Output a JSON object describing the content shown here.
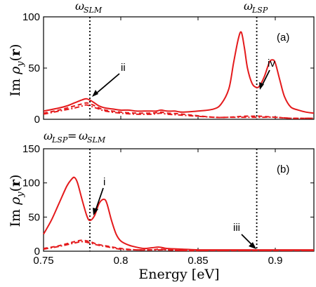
{
  "chart_data": [
    {
      "type": "line",
      "panel_label": "(a)",
      "ylabel": "Im ρ_y(r)",
      "xlim": [
        0.75,
        0.925
      ],
      "ylim": [
        0,
        100
      ],
      "yticks": [
        "0",
        "50",
        "100"
      ],
      "top_labels": [
        "ω_SLM",
        "ω_LSP"
      ],
      "vlines": [
        0.78,
        0.888
      ],
      "series": [
        {
          "style": "solid",
          "x": [
            0.75,
            0.76,
            0.765,
            0.77,
            0.775,
            0.778,
            0.782,
            0.786,
            0.79,
            0.795,
            0.8,
            0.805,
            0.81,
            0.815,
            0.82,
            0.823,
            0.826,
            0.83,
            0.835,
            0.84,
            0.85,
            0.86,
            0.865,
            0.87,
            0.873,
            0.876,
            0.878,
            0.88,
            0.882,
            0.885,
            0.888,
            0.89,
            0.893,
            0.896,
            0.898,
            0.9,
            0.903,
            0.906,
            0.91,
            0.915,
            0.92,
            0.925
          ],
          "values": [
            8,
            11,
            13,
            16,
            19,
            20,
            17,
            13,
            11,
            10,
            9,
            9,
            8,
            8,
            8,
            8,
            9,
            8,
            8,
            7,
            8,
            10,
            15,
            30,
            55,
            78,
            85,
            70,
            50,
            35,
            31,
            33,
            42,
            55,
            58,
            55,
            38,
            22,
            12,
            9,
            7,
            6
          ]
        },
        {
          "style": "dashed",
          "x": [
            0.75,
            0.76,
            0.77,
            0.775,
            0.778,
            0.782,
            0.786,
            0.79,
            0.8,
            0.81,
            0.82,
            0.826,
            0.83,
            0.84,
            0.86,
            0.87,
            0.88,
            0.885,
            0.89,
            0.9,
            0.91,
            0.925
          ],
          "values": [
            6,
            9,
            13,
            15,
            16,
            14,
            11,
            9,
            7,
            6,
            6,
            7,
            6,
            5,
            2,
            2,
            3,
            3,
            3,
            2,
            1,
            1
          ]
        },
        {
          "style": "dashdot",
          "x": [
            0.75,
            0.76,
            0.77,
            0.775,
            0.778,
            0.782,
            0.786,
            0.79,
            0.8,
            0.81,
            0.82,
            0.826,
            0.83,
            0.84,
            0.86,
            0.87,
            0.88,
            0.885,
            0.89,
            0.9,
            0.91,
            0.925
          ],
          "values": [
            5,
            8,
            11,
            13,
            14,
            12,
            10,
            8,
            6,
            5,
            5,
            6,
            5,
            4,
            2,
            2,
            2,
            2,
            2,
            2,
            1,
            1
          ]
        }
      ],
      "annotations": [
        {
          "text": "ii",
          "x": 0.78,
          "y": 20
        },
        {
          "text": "iv",
          "x": 0.888,
          "y": 31
        }
      ]
    },
    {
      "type": "line",
      "panel_label": "(b)",
      "ylabel": "Im ρ_y(r)",
      "xlabel": "Energy [eV]",
      "xlim": [
        0.75,
        0.925
      ],
      "ylim": [
        0,
        150
      ],
      "xticks": [
        "0.75",
        "0.8",
        "0.85",
        "0.9"
      ],
      "yticks": [
        "0",
        "50",
        "100",
        "150"
      ],
      "top_labels": [
        "ω_LSP = ω_SLM"
      ],
      "vlines": [
        0.78,
        0.888
      ],
      "series": [
        {
          "style": "solid",
          "x": [
            0.75,
            0.755,
            0.76,
            0.765,
            0.768,
            0.77,
            0.772,
            0.775,
            0.778,
            0.78,
            0.783,
            0.786,
            0.789,
            0.791,
            0.794,
            0.797,
            0.8,
            0.805,
            0.81,
            0.815,
            0.82,
            0.825,
            0.83,
            0.84,
            0.85,
            0.86,
            0.87,
            0.88,
            0.89,
            0.9,
            0.91,
            0.925
          ],
          "values": [
            25,
            45,
            70,
            95,
            105,
            108,
            100,
            75,
            52,
            45,
            52,
            70,
            76,
            70,
            45,
            25,
            15,
            9,
            6,
            4,
            5,
            6,
            4,
            3,
            2,
            2,
            2,
            2,
            2,
            2,
            2,
            2
          ]
        },
        {
          "style": "dashed",
          "x": [
            0.75,
            0.76,
            0.77,
            0.775,
            0.78,
            0.785,
            0.79,
            0.8,
            0.81,
            0.82,
            0.825,
            0.83,
            0.84,
            0.86,
            0.88,
            0.9,
            0.925
          ],
          "values": [
            4,
            8,
            14,
            16,
            14,
            10,
            8,
            4,
            2,
            2,
            3,
            2,
            1,
            1,
            1,
            1,
            1
          ]
        },
        {
          "style": "dashdot",
          "x": [
            0.75,
            0.76,
            0.77,
            0.775,
            0.78,
            0.785,
            0.79,
            0.8,
            0.81,
            0.82,
            0.825,
            0.83,
            0.84,
            0.86,
            0.88,
            0.9,
            0.925
          ],
          "values": [
            3,
            7,
            12,
            14,
            12,
            9,
            7,
            3,
            2,
            2,
            2,
            2,
            1,
            1,
            1,
            1,
            1
          ]
        }
      ],
      "annotations": [
        {
          "text": "i",
          "x": 0.78,
          "y": 45
        },
        {
          "text": "iii",
          "x": 0.888,
          "y": 2
        }
      ]
    }
  ]
}
